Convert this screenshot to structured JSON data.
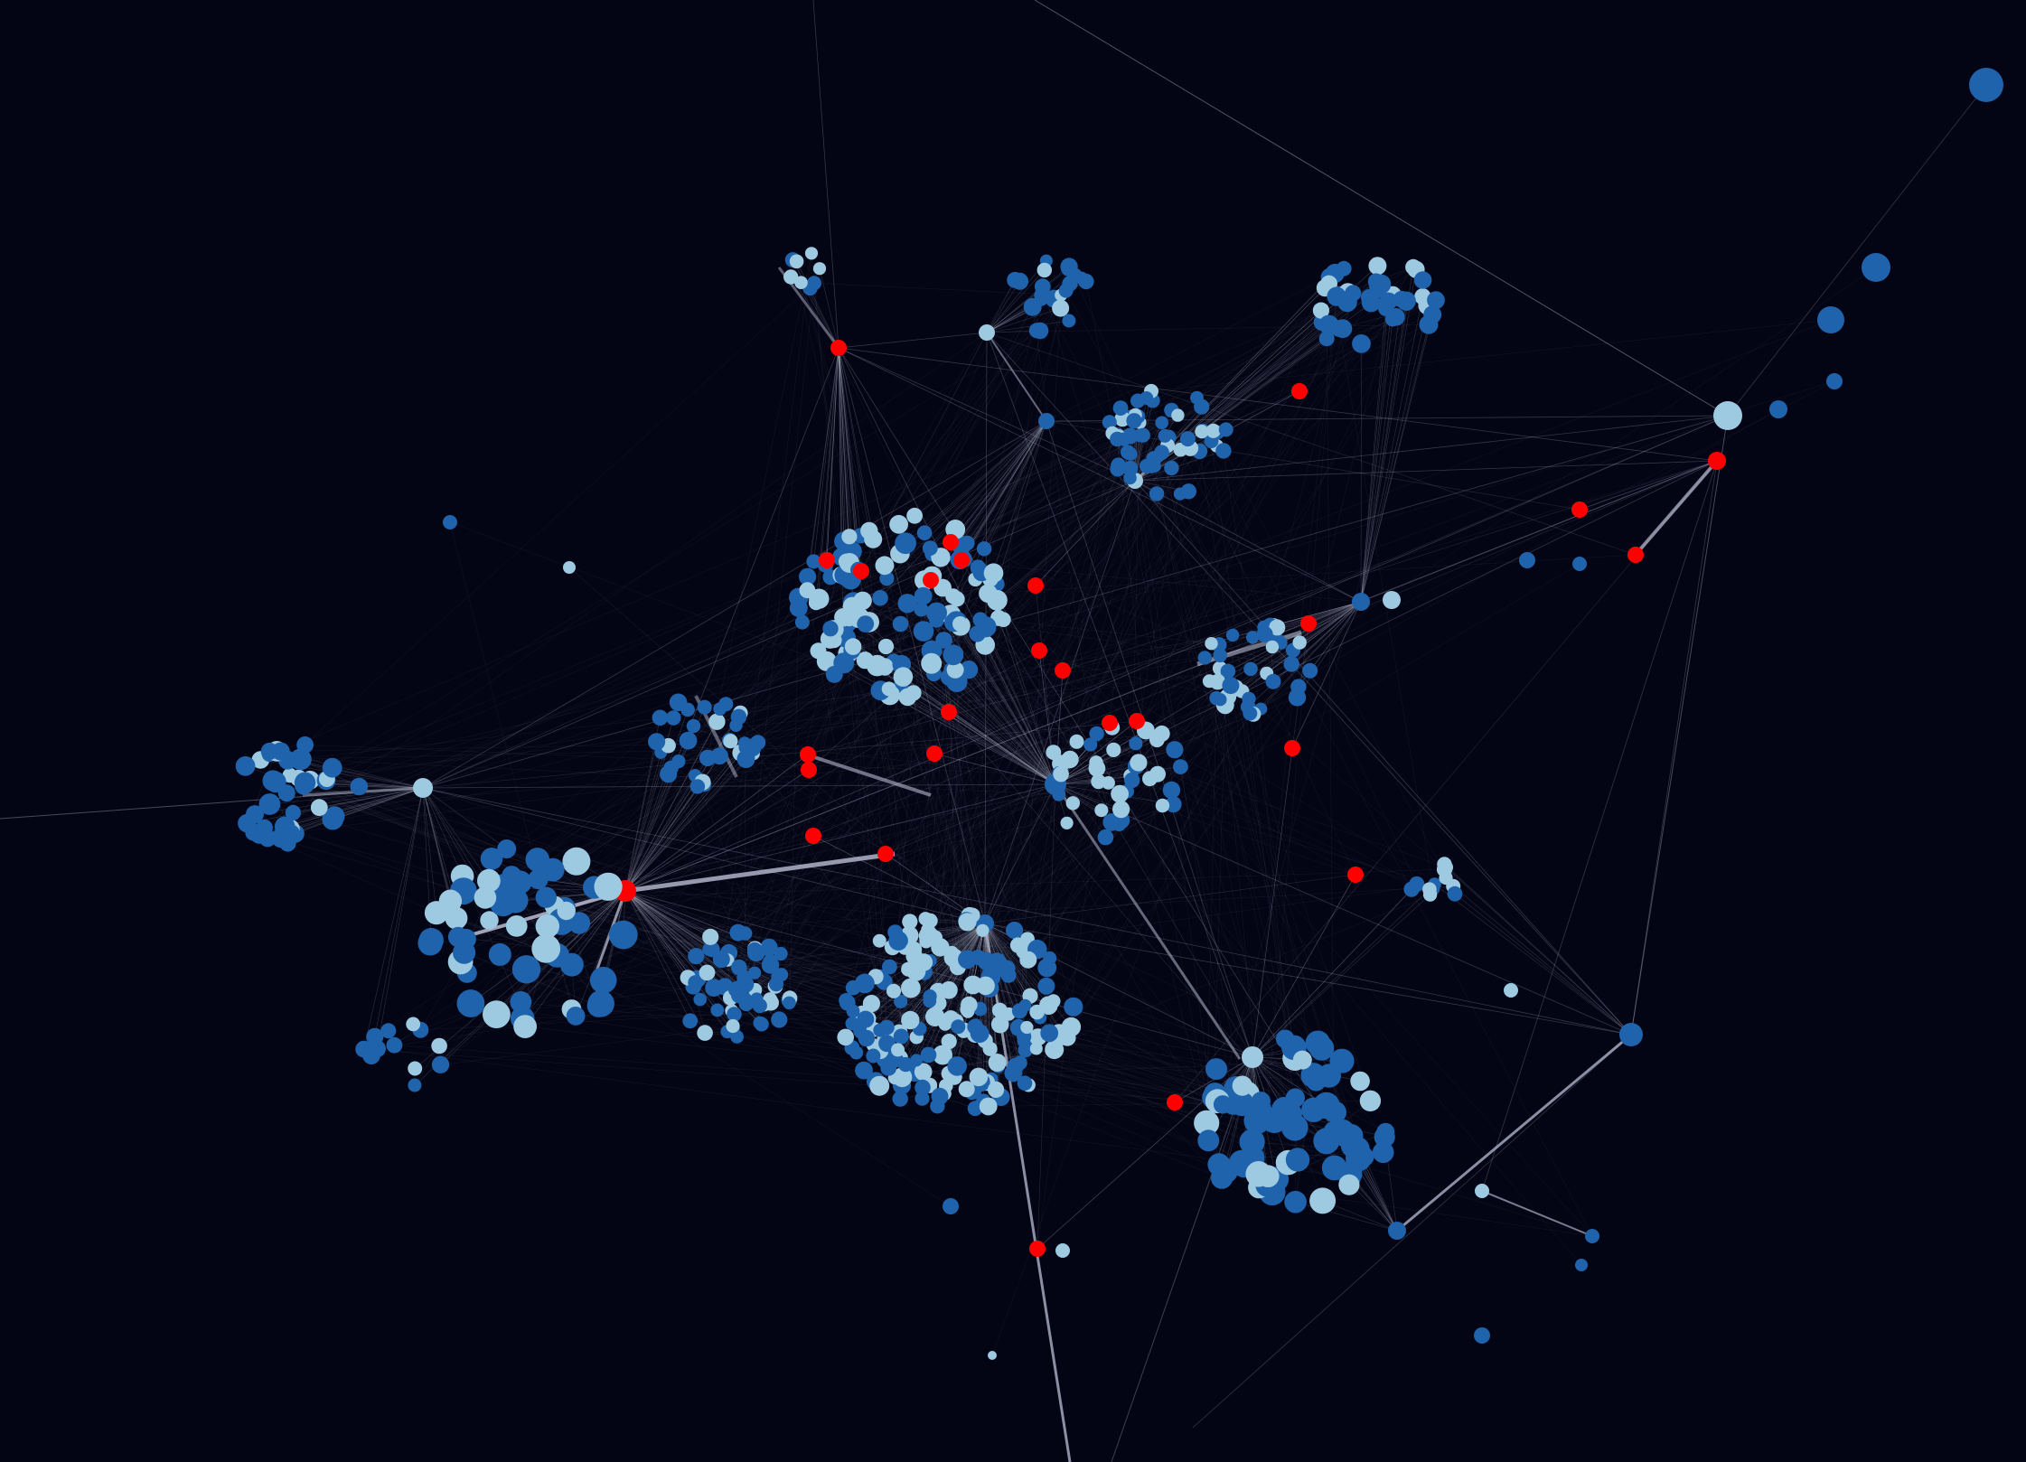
{
  "graph": {
    "colors": {
      "background": "#030414",
      "node_dark_blue": "#1f63ad",
      "node_light_blue": "#9ecae1",
      "node_red": "#ff0000",
      "edge": "#c8cbe0"
    },
    "node_categories": [
      "dark-blue",
      "light-blue",
      "red"
    ],
    "text_labels": []
  }
}
